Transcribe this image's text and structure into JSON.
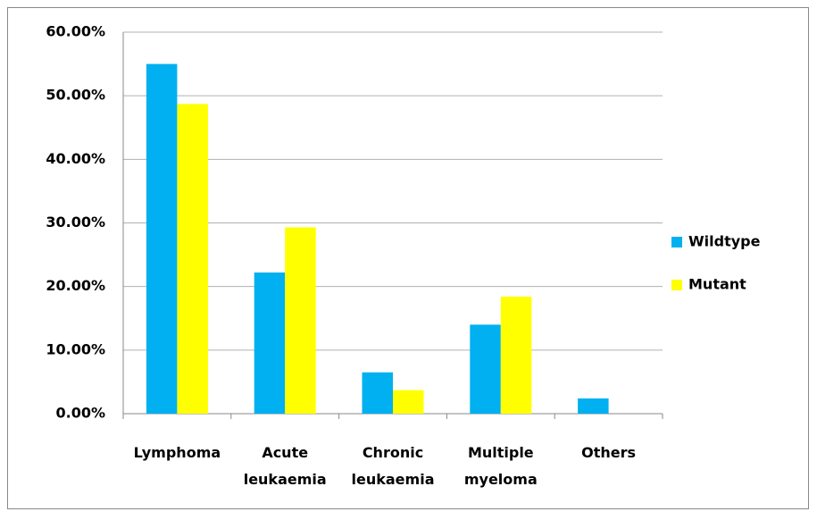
{
  "chart_data": {
    "type": "bar",
    "categories": [
      "Lymphoma",
      "Acute leukaemia",
      "Chronic leukaemia",
      "Multiple myeloma",
      "Others"
    ],
    "series": [
      {
        "name": "Wildtype",
        "color": "#00b0f0",
        "values": [
          55,
          22.2,
          6.5,
          14,
          2.4
        ]
      },
      {
        "name": "Mutant",
        "color": "#ffff00",
        "values": [
          48.7,
          29.3,
          3.7,
          18.4,
          0
        ]
      }
    ],
    "ylim": [
      0,
      60
    ],
    "yticks": [
      {
        "value": 0,
        "label": "0.00%"
      },
      {
        "value": 10,
        "label": "10.00%"
      },
      {
        "value": 20,
        "label": "20.00%"
      },
      {
        "value": 30,
        "label": "30.00%"
      },
      {
        "value": 40,
        "label": "40.00%"
      },
      {
        "value": 50,
        "label": "50.00%"
      },
      {
        "value": 60,
        "label": "60.00%"
      }
    ],
    "grid": true,
    "legend": "right"
  }
}
